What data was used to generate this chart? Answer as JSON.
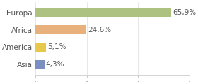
{
  "categories": [
    "Europa",
    "Africa",
    "America",
    "Asia"
  ],
  "values": [
    65.9,
    24.6,
    5.1,
    4.3
  ],
  "labels": [
    "65,9%",
    "24,6%",
    "5,1%",
    "4,3%"
  ],
  "bar_colors": [
    "#adc180",
    "#e8b07a",
    "#e8c84a",
    "#7b8fc0"
  ],
  "background_color": "#ffffff",
  "xlim": [
    0,
    75
  ],
  "xticks": [
    0,
    25,
    50,
    75
  ],
  "figsize": [
    2.8,
    1.2
  ],
  "dpi": 100,
  "label_fontsize": 7.5,
  "ytick_fontsize": 7.5,
  "bar_height": 0.5
}
